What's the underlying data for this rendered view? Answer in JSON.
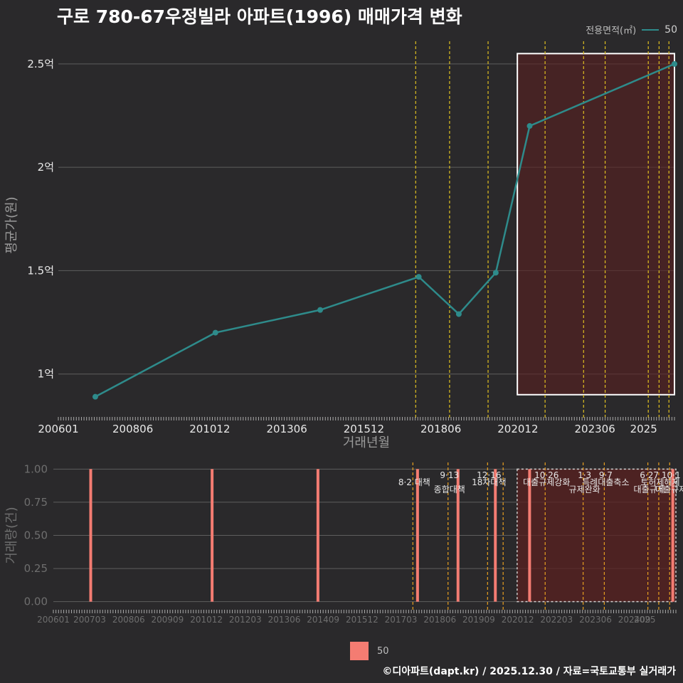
{
  "title": "구로 780-67우정빌라 아파트(1996) 매매가격 변화",
  "legend": {
    "title": "전용면적(㎡)",
    "series_label": "50",
    "bar_label": "50"
  },
  "footer": "©디아파트(dapt.kr) / 2025.12.30 / 자료=국토교통부 실거래가",
  "colors": {
    "line": "#2e8b8b",
    "bar": "#f47c72",
    "policy_line": "#e0c020",
    "policy_line_bottom": "#e8a020",
    "highlight": "#5a2020"
  },
  "chart_data": [
    {
      "type": "line",
      "title": "구로 780-67우정빌라 아파트(1996) 매매가격 변화",
      "xlabel": "거래년월",
      "ylabel": "평균가(원)",
      "x_ticks": [
        "200601",
        "200806",
        "201012",
        "201306",
        "201512",
        "201806",
        "202012",
        "202306",
        "2025"
      ],
      "y_ticks": [
        {
          "value": 1.0,
          "label": "1억"
        },
        {
          "value": 1.5,
          "label": "1.5억"
        },
        {
          "value": 2.0,
          "label": "2억"
        },
        {
          "value": 2.5,
          "label": "2.5억"
        }
      ],
      "ylim": [
        0.82,
        2.62
      ],
      "xlim": [
        2006.0,
        2026.0
      ],
      "series": [
        {
          "name": "50",
          "x": [
            2007.2,
            2011.1,
            2014.5,
            2017.7,
            2019.0,
            2020.2,
            2021.3,
            2026.0
          ],
          "y": [
            0.89,
            1.2,
            1.31,
            1.47,
            1.29,
            1.49,
            2.2,
            2.5
          ]
        }
      ],
      "policy_lines": [
        2017.6,
        2018.7,
        2019.95,
        2021.8,
        2023.05,
        2023.75,
        2025.15,
        2025.5,
        2025.82
      ],
      "highlight_range": {
        "x": [
          2020.9,
          2026.0
        ],
        "y": [
          0.9,
          2.55
        ]
      }
    },
    {
      "type": "bar",
      "xlabel": "",
      "ylabel": "거래량(건)",
      "x_ticks": [
        "200601",
        "200703",
        "200806",
        "200909",
        "201012",
        "201203",
        "201306",
        "201409",
        "201512",
        "201703",
        "201806",
        "201909",
        "202012",
        "202203",
        "202306",
        "202409",
        "2025"
      ],
      "y_ticks": [
        "0.00",
        "0.25",
        "0.50",
        "0.75",
        "1.00"
      ],
      "ylim": [
        -0.05,
        1.05
      ],
      "xlim": [
        2006.0,
        2026.0
      ],
      "bars": [
        {
          "x": 2007.2,
          "value": 1
        },
        {
          "x": 2011.1,
          "value": 1
        },
        {
          "x": 2014.5,
          "value": 1
        },
        {
          "x": 2017.7,
          "value": 1
        },
        {
          "x": 2019.0,
          "value": 1
        },
        {
          "x": 2020.2,
          "value": 1
        },
        {
          "x": 2021.3,
          "value": 1
        },
        {
          "x": 2025.9,
          "value": 1
        }
      ],
      "policy_lines": [
        {
          "x": 2017.55,
          "date": "",
          "label": "8·2 대책"
        },
        {
          "x": 2018.68,
          "date": "9·13",
          "label": "종합대책"
        },
        {
          "x": 2019.95,
          "date": "12·16",
          "label": "18차대책"
        },
        {
          "x": 2020.45,
          "date": "",
          "label": ""
        },
        {
          "x": 2021.8,
          "date": "10·26",
          "label": "대출규제강화"
        },
        {
          "x": 2023.02,
          "date": "1·3",
          "label": "규제완화"
        },
        {
          "x": 2023.7,
          "date": "9·7",
          "label": "특례대출축소"
        },
        {
          "x": 2025.1,
          "date": "6·27",
          "label": "대출규제"
        },
        {
          "x": 2025.45,
          "date": "",
          "label": "토허제해제"
        },
        {
          "x": 2025.8,
          "date": "10·1",
          "label": "대출규제"
        }
      ],
      "highlight_range": {
        "x": [
          2020.9,
          2026.0
        ],
        "y": [
          0.0,
          1.0
        ]
      }
    }
  ]
}
